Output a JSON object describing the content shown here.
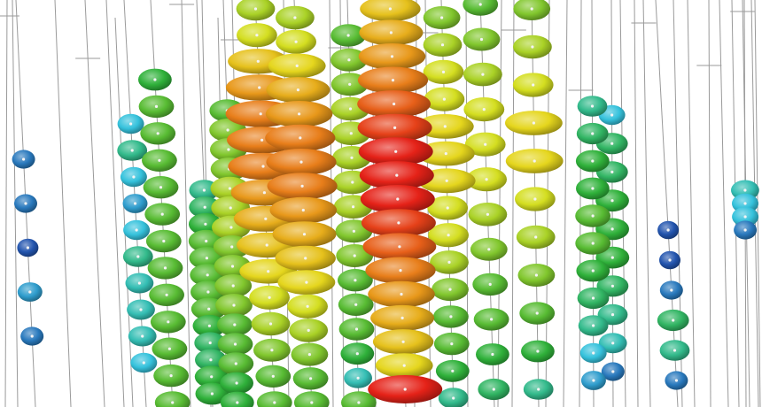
{
  "image": {
    "subject": "",
    "background_color": "#ffffff",
    "string_line_color": "#9a9a9a",
    "sensor_dot_color": "#f4f4f4"
  },
  "color_scale": {
    "low": "#1c2f9e",
    "mid_low": "#35c2dc",
    "mid": "#2fb13a",
    "mid_high": "#e4e21d",
    "high": "#e8901a",
    "peak": "#e52218"
  },
  "strings": [
    {
      "intensity": [
        0.1,
        0.1,
        0.05,
        0.15,
        0.1
      ]
    },
    {
      "intensity": [
        0.2,
        0.3,
        0.2,
        0.15,
        0.2,
        0.3,
        0.25,
        0.25,
        0.25,
        0.2
      ]
    },
    {
      "intensity": [
        0.4,
        0.45,
        0.45,
        0.45,
        0.45,
        0.45,
        0.45,
        0.45,
        0.45,
        0.45,
        0.45,
        0.45,
        0.45
      ]
    },
    {
      "intensity": [
        0.45,
        0.5,
        0.5,
        0.5,
        0.55,
        0.55,
        0.55,
        0.5,
        0.5,
        0.5,
        0.5,
        0.45,
        0.45,
        0.45,
        0.4,
        0.4
      ]
    },
    {
      "intensity": [
        0.3,
        0.35,
        0.4,
        0.45,
        0.45,
        0.45,
        0.45,
        0.45,
        0.4,
        0.35,
        0.35,
        0.4,
        0.4
      ]
    },
    {
      "intensity": [
        0.55,
        0.6,
        0.7,
        0.8,
        0.85,
        0.85,
        0.85,
        0.8,
        0.75,
        0.7,
        0.65,
        0.6,
        0.55,
        0.5,
        0.45,
        0.45
      ]
    },
    {
      "intensity": [
        0.55,
        0.6,
        0.65,
        0.75,
        0.8,
        0.85,
        0.85,
        0.85,
        0.8,
        0.75,
        0.7,
        0.65,
        0.6,
        0.55,
        0.5,
        0.45,
        0.45
      ]
    },
    {
      "intensity": [
        0.45,
        0.5,
        0.5,
        0.55,
        0.55,
        0.55,
        0.55,
        0.55,
        0.5,
        0.5,
        0.45,
        0.45,
        0.45,
        0.4,
        0.25,
        0.45
      ]
    },
    {
      "intensity": [
        0.7,
        0.75,
        0.8,
        0.85,
        0.9,
        0.95,
        1.0,
        1.0,
        1.0,
        0.95,
        0.9,
        0.85,
        0.8,
        0.75,
        0.7,
        0.65,
        1.0
      ]
    },
    {
      "intensity": [
        0.5,
        0.55,
        0.6,
        0.6,
        0.65,
        0.65,
        0.65,
        0.6,
        0.6,
        0.55,
        0.5,
        0.45,
        0.45,
        0.4,
        0.3
      ]
    },
    {
      "intensity": [
        0.45,
        0.5,
        0.55,
        0.6,
        0.6,
        0.6,
        0.55,
        0.5,
        0.45,
        0.45,
        0.4,
        0.35
      ]
    },
    {
      "intensity": [
        0.5,
        0.55,
        0.6,
        0.65,
        0.65,
        0.6,
        0.55,
        0.5,
        0.45,
        0.4,
        0.3
      ]
    },
    {
      "intensity": [
        0.3,
        0.35,
        0.4,
        0.4,
        0.45,
        0.45,
        0.4,
        0.35,
        0.3,
        0.2,
        0.15
      ]
    },
    {
      "intensity": [
        0.2,
        0.35,
        0.35,
        0.4,
        0.4,
        0.4,
        0.35,
        0.3,
        0.25,
        0.1
      ]
    },
    {
      "intensity": [
        0.05,
        0.05,
        0.1,
        0.35,
        0.3,
        0.1
      ]
    },
    {
      "intensity": [
        0.25,
        0.2,
        0.2,
        0.1
      ]
    }
  ]
}
